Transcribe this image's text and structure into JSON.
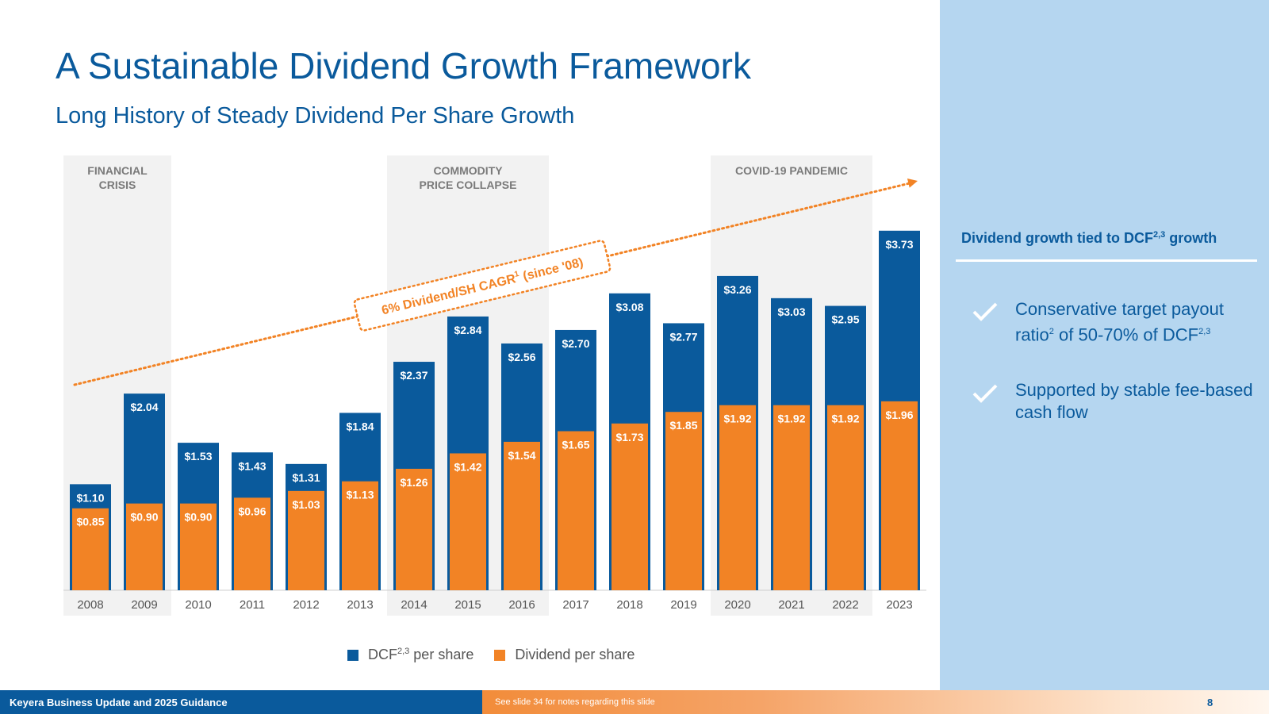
{
  "slide": {
    "title": "A Sustainable Dividend Growth Framework",
    "subtitle": "Long History of Steady Dividend Per Share Growth",
    "page_number": "8"
  },
  "side_panel": {
    "heading_pre": "Dividend growth tied to DCF",
    "heading_sup": "2,3",
    "heading_post": " growth",
    "bullets": [
      {
        "pre": "Conservative target payout ratio",
        "sup1": "2",
        "mid": " of 50-70% of DCF",
        "sup2": "2,3"
      },
      {
        "pre": "Supported by stable fee-based cash flow",
        "sup1": "",
        "mid": "",
        "sup2": ""
      }
    ]
  },
  "footer": {
    "left": "Keyera Business Update and 2025 Guidance",
    "note": "See slide 34 for notes regarding this slide"
  },
  "legend": {
    "dcf_pre": "DCF",
    "dcf_sup": "2,3",
    "dcf_post": " per share",
    "dividend": "Dividend per share"
  },
  "colors": {
    "dcf": "#0a5a9c",
    "dividend": "#f28325",
    "shade": "#f2f2f2",
    "text": "#0a5a9c",
    "arrow": "#f28325"
  },
  "chart_data": {
    "type": "bar",
    "title": "Long History of Steady Dividend Per Share Growth",
    "categories": [
      "2008",
      "2009",
      "2010",
      "2011",
      "2012",
      "2013",
      "2014",
      "2015",
      "2016",
      "2017",
      "2018",
      "2019",
      "2020",
      "2021",
      "2022",
      "2023"
    ],
    "series": [
      {
        "name": "DCF per share",
        "values": [
          1.1,
          2.04,
          1.53,
          1.43,
          1.31,
          1.84,
          2.37,
          2.84,
          2.56,
          2.7,
          3.08,
          2.77,
          3.26,
          3.03,
          2.95,
          3.73
        ],
        "labels": [
          "$1.10",
          "$2.04",
          "$1.53",
          "$1.43",
          "$1.31",
          "$1.84",
          "$2.37",
          "$2.84",
          "$2.56",
          "$2.70",
          "$3.08",
          "$2.77",
          "$3.26",
          "$3.03",
          "$2.95",
          "$3.73"
        ]
      },
      {
        "name": "Dividend per share",
        "values": [
          0.85,
          0.9,
          0.9,
          0.96,
          1.03,
          1.13,
          1.26,
          1.42,
          1.54,
          1.65,
          1.73,
          1.85,
          1.92,
          1.92,
          1.92,
          1.96
        ],
        "labels": [
          "$0.85",
          "$0.90",
          "$0.90",
          "$0.96",
          "$1.03",
          "$1.13",
          "$1.26",
          "$1.42",
          "$1.54",
          "$1.65",
          "$1.73",
          "$1.85",
          "$1.92",
          "$1.92",
          "$1.92",
          "$1.96"
        ]
      }
    ],
    "ylim": [
      0,
      4.5
    ],
    "shaded_periods": [
      {
        "label_lines": [
          "FINANCIAL",
          "CRISIS"
        ],
        "from": "2008",
        "to": "2009"
      },
      {
        "label_lines": [
          "COMMODITY",
          "PRICE COLLAPSE"
        ],
        "from": "2014",
        "to": "2016"
      },
      {
        "label_lines": [
          "COVID-19 PANDEMIC"
        ],
        "from": "2020",
        "to": "2022"
      }
    ],
    "annotation": {
      "pre": "6% Dividend/SH CAGR",
      "sup": "1",
      "post": " (since '08)"
    }
  }
}
